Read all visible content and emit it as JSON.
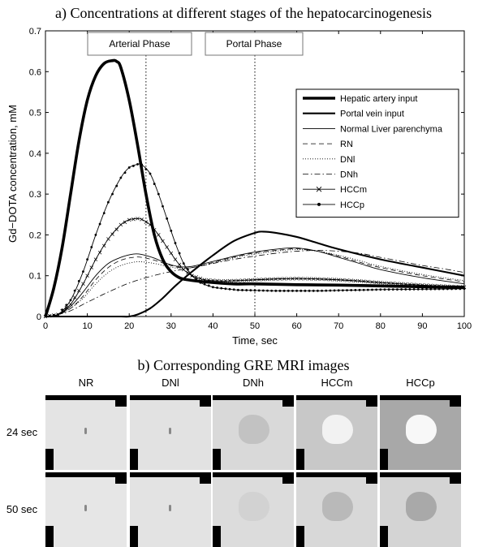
{
  "panel_a_title": "a) Concentrations at different stages of the hepatocarcinogenesis",
  "panel_b_title": "b) Corresponding GRE MRI images",
  "chart_data": {
    "type": "line",
    "xlabel": "Time, sec",
    "ylabel": "Gd−DOTA concentration, mM",
    "xlim": [
      0,
      100
    ],
    "ylim": [
      0,
      0.7
    ],
    "xticks": [
      0,
      10,
      20,
      30,
      40,
      50,
      60,
      70,
      80,
      90,
      100
    ],
    "yticks": [
      0,
      0.1,
      0.2,
      0.3,
      0.4,
      0.5,
      0.6,
      0.7
    ],
    "legend_position": "right",
    "annotations": [
      {
        "label": "Arterial Phase",
        "x": 24
      },
      {
        "label": "Portal Phase",
        "x": 50
      }
    ],
    "series": [
      {
        "name": "Hepatic artery input",
        "style": "thick",
        "x": [
          0,
          2,
          4,
          6,
          8,
          10,
          12,
          14,
          16,
          17,
          18,
          20,
          22,
          24,
          26,
          28,
          30,
          32,
          34,
          38,
          45,
          50,
          60,
          70,
          80,
          90,
          100
        ],
        "y": [
          0,
          0.07,
          0.17,
          0.3,
          0.43,
          0.53,
          0.59,
          0.62,
          0.627,
          0.625,
          0.61,
          0.53,
          0.42,
          0.3,
          0.2,
          0.14,
          0.11,
          0.095,
          0.09,
          0.085,
          0.08,
          0.08,
          0.078,
          0.077,
          0.075,
          0.073,
          0.072
        ]
      },
      {
        "name": "Portal vein input",
        "style": "medium",
        "x": [
          0,
          10,
          15,
          18,
          20,
          22,
          25,
          28,
          31,
          35,
          40,
          45,
          50,
          52,
          55,
          60,
          65,
          70,
          80,
          90,
          100
        ],
        "y": [
          0,
          0,
          0,
          0,
          0,
          0.005,
          0.02,
          0.045,
          0.075,
          0.11,
          0.15,
          0.185,
          0.205,
          0.208,
          0.205,
          0.195,
          0.18,
          0.165,
          0.14,
          0.12,
          0.1
        ]
      },
      {
        "name": "Normal Liver parenchyma",
        "style": "thin",
        "x": [
          0,
          3,
          6,
          9,
          12,
          15,
          18,
          21,
          23,
          26,
          29,
          32,
          35,
          38,
          42,
          46,
          50,
          55,
          60,
          65,
          70,
          75,
          80,
          90,
          100
        ],
        "y": [
          0,
          0.005,
          0.025,
          0.06,
          0.1,
          0.13,
          0.145,
          0.153,
          0.152,
          0.143,
          0.13,
          0.122,
          0.123,
          0.13,
          0.14,
          0.15,
          0.158,
          0.165,
          0.168,
          0.16,
          0.145,
          0.13,
          0.115,
          0.095,
          0.08
        ]
      },
      {
        "name": "RN",
        "style": "dashed",
        "x": [
          0,
          3,
          6,
          9,
          12,
          15,
          18,
          21,
          23,
          26,
          29,
          32,
          35,
          38,
          42,
          46,
          50,
          55,
          60,
          65,
          70,
          75,
          80,
          90,
          100
        ],
        "y": [
          0,
          0.005,
          0.02,
          0.05,
          0.09,
          0.12,
          0.138,
          0.145,
          0.145,
          0.138,
          0.128,
          0.12,
          0.12,
          0.127,
          0.138,
          0.148,
          0.156,
          0.162,
          0.166,
          0.16,
          0.148,
          0.133,
          0.12,
          0.1,
          0.085
        ]
      },
      {
        "name": "DNl",
        "style": "dotted",
        "x": [
          0,
          3,
          6,
          9,
          12,
          15,
          18,
          21,
          23,
          26,
          29,
          32,
          35,
          38,
          42,
          46,
          50,
          55,
          60,
          65,
          70,
          75,
          80,
          90,
          100
        ],
        "y": [
          0,
          0.004,
          0.02,
          0.045,
          0.08,
          0.108,
          0.125,
          0.133,
          0.134,
          0.13,
          0.123,
          0.118,
          0.12,
          0.126,
          0.136,
          0.146,
          0.153,
          0.16,
          0.164,
          0.16,
          0.15,
          0.137,
          0.123,
          0.103,
          0.088
        ]
      },
      {
        "name": "DNh",
        "style": "dashdot",
        "x": [
          0,
          5,
          10,
          15,
          20,
          25,
          30,
          35,
          40,
          45,
          50,
          55,
          60,
          65,
          70,
          75,
          80,
          85,
          90,
          95,
          100
        ],
        "y": [
          0,
          0.01,
          0.035,
          0.06,
          0.082,
          0.098,
          0.11,
          0.12,
          0.13,
          0.14,
          0.148,
          0.155,
          0.16,
          0.162,
          0.16,
          0.155,
          0.145,
          0.135,
          0.125,
          0.117,
          0.108
        ]
      },
      {
        "name": "HCCm",
        "style": "cross",
        "x": [
          0,
          3,
          6,
          9,
          12,
          15,
          18,
          20,
          22,
          23,
          25,
          27,
          29,
          31,
          33,
          35,
          38,
          42,
          46,
          50,
          55,
          60,
          65,
          70,
          75,
          80,
          90,
          100
        ],
        "y": [
          0,
          0.005,
          0.03,
          0.08,
          0.14,
          0.19,
          0.225,
          0.237,
          0.24,
          0.238,
          0.225,
          0.2,
          0.17,
          0.14,
          0.115,
          0.1,
          0.09,
          0.087,
          0.088,
          0.09,
          0.092,
          0.093,
          0.092,
          0.09,
          0.087,
          0.083,
          0.077,
          0.072
        ]
      },
      {
        "name": "HCCp",
        "style": "dot",
        "x": [
          0,
          3,
          6,
          9,
          12,
          15,
          18,
          20,
          22,
          23,
          25,
          27,
          29,
          31,
          33,
          35,
          37,
          40,
          43,
          46,
          50,
          55,
          60,
          65,
          70,
          75,
          80,
          90,
          100
        ],
        "y": [
          0,
          0.005,
          0.04,
          0.11,
          0.2,
          0.28,
          0.34,
          0.365,
          0.373,
          0.372,
          0.35,
          0.3,
          0.24,
          0.18,
          0.13,
          0.1,
          0.083,
          0.072,
          0.068,
          0.065,
          0.064,
          0.063,
          0.063,
          0.063,
          0.064,
          0.065,
          0.066,
          0.067,
          0.068
        ]
      }
    ]
  },
  "mri": {
    "columns": [
      "NR",
      "DNl",
      "DNh",
      "HCCm",
      "HCCp"
    ],
    "rows": [
      "24 sec",
      "50 sec"
    ],
    "background_colors": [
      [
        "#e4e4e4",
        "#e2e2e2",
        "#d9d9d9",
        "#c8c8c8",
        "#a8a8a8"
      ],
      [
        "#e6e6e6",
        "#e3e3e3",
        "#dcdcdc",
        "#d8d8d8",
        "#d4d4d4"
      ]
    ],
    "lesion_colors": [
      [
        null,
        null,
        "#c2c2c2",
        "#f2f2f2",
        "#f8f8f8"
      ],
      [
        null,
        null,
        "#d2d2d2",
        "#b9b9b9",
        "#a9a9a9"
      ]
    ]
  }
}
